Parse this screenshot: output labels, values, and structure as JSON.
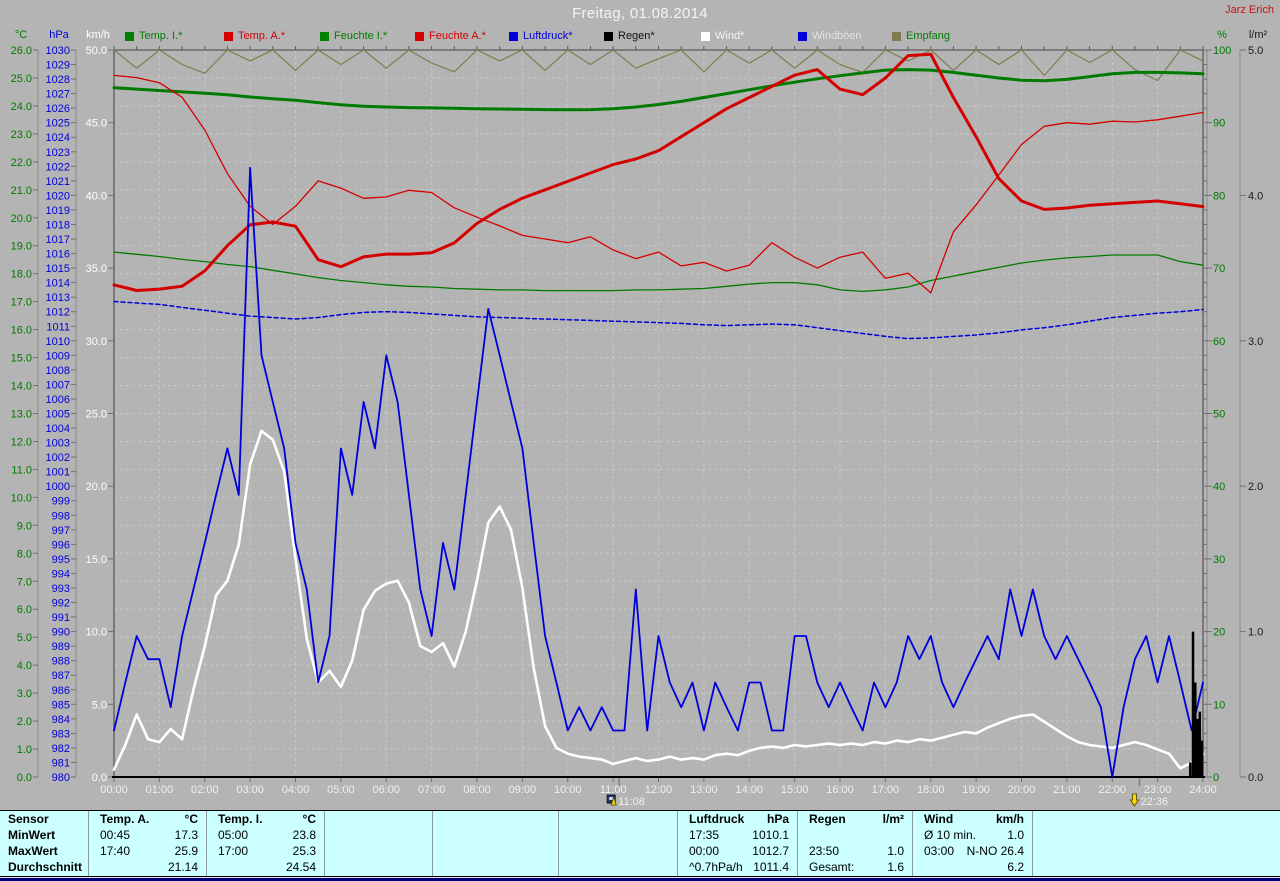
{
  "window": {
    "title": "Freitag, 01.08.2014",
    "watermark": "Jarz Erich"
  },
  "legend": {
    "items": [
      {
        "label": "Temp. I.*",
        "swatch": "#008000",
        "text_color": "#007d00",
        "icon": "green-square-icon"
      },
      {
        "label": "Temp. A.*",
        "swatch": "#d40000",
        "text_color": "#d40000",
        "icon": "red-square-icon"
      },
      {
        "label": "Feuchte I.*",
        "swatch": "#008000",
        "text_color": "#007d00",
        "icon": "green-square-icon"
      },
      {
        "label": "Feuchte A.*",
        "swatch": "#d40000",
        "text_color": "#d40000",
        "icon": "red-square-icon"
      },
      {
        "label": "Luftdruck*",
        "swatch": "#0000d8",
        "text_color": "#0000d8",
        "icon": "blue-square-icon"
      },
      {
        "label": "Regen*",
        "swatch": "#000000",
        "text_color": "#111111",
        "icon": "black-square-icon"
      },
      {
        "label": "Wind*",
        "swatch": "#ffffff",
        "text_color": "#f5f5f5",
        "icon": "white-square-icon"
      },
      {
        "label": "Windböen",
        "swatch": "#0000d8",
        "text_color": "#e2e2e2",
        "icon": "blue-square-icon"
      },
      {
        "label": "Empfang",
        "swatch": "#7f7d4e",
        "text_color": "#007d00",
        "icon": "olive-square-icon"
      }
    ]
  },
  "axes": {
    "temp_c": {
      "unit": "°C",
      "min": 0,
      "max": 26,
      "label_step": 1,
      "decimals": 1,
      "color": "#007a00"
    },
    "pressure_hpa": {
      "unit": "hPa",
      "min": 980,
      "max": 1030,
      "label_step": 1,
      "decimals": 0,
      "color": "#0000d8"
    },
    "wind_kmh": {
      "unit": "km/h",
      "min": 0,
      "max": 50,
      "label_step": 5,
      "decimals": 1,
      "color": "#ffffff"
    },
    "humidity_pct": {
      "unit": "%",
      "min": 0,
      "max": 100,
      "label_step": 10,
      "decimals": 0,
      "color": "#007a00"
    },
    "rain_lm2": {
      "unit": "l/m²",
      "min": 0,
      "max": 5,
      "label_step": 1,
      "decimals": 1,
      "color": "#1a1a1a"
    },
    "time": {
      "tick_labels": [
        "00:00",
        "01:00",
        "02:00",
        "03:00",
        "04:00",
        "05:00",
        "06:00",
        "07:00",
        "08:00",
        "09:00",
        "10:00",
        "11:00",
        "12:00",
        "13:00",
        "14:00",
        "15:00",
        "16:00",
        "17:00",
        "18:00",
        "19:00",
        "20:00",
        "21:00",
        "22:00",
        "23:00",
        "24:00"
      ],
      "color": "#f0f0f0"
    }
  },
  "chart_data": {
    "type": "line",
    "title": "Freitag, 01.08.2014",
    "x_range_hours": [
      0,
      24
    ],
    "grid": "dashed",
    "series": [
      {
        "name": "Empfang",
        "axis": "humidity_pct",
        "color": "#7f7d4e",
        "width": 1.2,
        "style": "solid",
        "x_step_hours": 0.5,
        "values": [
          100,
          97.5,
          100,
          98,
          96.8,
          100,
          98.5,
          100,
          97.2,
          100,
          98,
          100,
          97.5,
          100,
          98.2,
          97,
          100,
          98.5,
          100,
          97.2,
          100,
          98,
          100,
          97.5,
          98.8,
          100,
          97,
          100,
          98.2,
          100,
          97.5,
          100,
          98,
          96.9,
          100,
          98.5,
          100,
          97.2,
          100,
          98,
          100,
          96.5,
          100,
          98.3,
          100,
          97.3,
          95.8,
          100,
          98.5
        ]
      },
      {
        "name": "Feuchte I.",
        "axis": "humidity_pct",
        "color": "#007a00",
        "width": 1.3,
        "style": "solid",
        "x_step_hours": 0.5,
        "values": [
          72.2,
          71.9,
          71.6,
          71.2,
          70.9,
          70.5,
          70.2,
          69.7,
          69.2,
          68.7,
          68.3,
          68.0,
          67.7,
          67.5,
          67.4,
          67.2,
          67.1,
          67.0,
          67.0,
          66.9,
          66.9,
          66.9,
          66.9,
          67.0,
          67.0,
          67.1,
          67.2,
          67.5,
          67.8,
          68.0,
          68.0,
          67.7,
          67.0,
          66.8,
          67.0,
          67.4,
          68.3,
          68.9,
          69.5,
          70.1,
          70.7,
          71.1,
          71.4,
          71.6,
          71.8,
          71.8,
          71.8,
          70.9,
          70.4
        ]
      },
      {
        "name": "Temp. I.",
        "axis": "temp_c",
        "color": "#007a00",
        "width": 3,
        "style": "solid",
        "x_step_hours": 0.5,
        "values": [
          24.65,
          24.6,
          24.55,
          24.5,
          24.45,
          24.4,
          24.32,
          24.26,
          24.2,
          24.12,
          24.04,
          23.99,
          23.96,
          23.94,
          23.93,
          23.92,
          23.9,
          23.89,
          23.88,
          23.87,
          23.86,
          23.87,
          23.9,
          23.96,
          24.05,
          24.16,
          24.3,
          24.44,
          24.58,
          24.72,
          24.85,
          24.97,
          25.08,
          25.18,
          25.28,
          25.3,
          25.28,
          25.2,
          25.1,
          25.0,
          24.92,
          24.9,
          24.95,
          25.05,
          25.15,
          25.2,
          25.2,
          25.18,
          25.15
        ]
      },
      {
        "name": "Luftdruck",
        "axis": "pressure_hpa",
        "color": "#0000dd",
        "width": 1.5,
        "style": "dashed",
        "x_step_hours": 0.5,
        "values": [
          1012.7,
          1012.6,
          1012.5,
          1012.3,
          1012.1,
          1011.9,
          1011.7,
          1011.6,
          1011.5,
          1011.6,
          1011.8,
          1011.95,
          1012.0,
          1011.95,
          1011.85,
          1011.75,
          1011.65,
          1011.6,
          1011.55,
          1011.5,
          1011.45,
          1011.4,
          1011.35,
          1011.3,
          1011.25,
          1011.2,
          1011.1,
          1011.05,
          1011.1,
          1011.15,
          1011.1,
          1010.9,
          1010.7,
          1010.5,
          1010.3,
          1010.15,
          1010.2,
          1010.3,
          1010.4,
          1010.55,
          1010.75,
          1010.9,
          1011.1,
          1011.35,
          1011.6,
          1011.75,
          1011.9,
          1012.0,
          1012.15
        ]
      },
      {
        "name": "Feuchte A.",
        "axis": "humidity_pct",
        "color": "#d40000",
        "width": 1.3,
        "style": "solid",
        "x_step_hours": 0.5,
        "values": [
          96.5,
          96.2,
          95.5,
          93.5,
          89.0,
          83.0,
          78.5,
          76.0,
          78.5,
          82.0,
          81.0,
          79.6,
          79.8,
          80.7,
          80.4,
          78.3,
          77.0,
          75.8,
          74.5,
          74.0,
          73.5,
          74.3,
          72.5,
          71.3,
          72.2,
          70.3,
          70.8,
          69.6,
          70.4,
          73.5,
          71.5,
          70.0,
          71.5,
          72.2,
          68.6,
          69.3,
          66.6,
          75.0,
          78.7,
          82.8,
          87.0,
          89.5,
          90.0,
          89.8,
          90.2,
          90.1,
          90.4,
          90.9,
          91.4
        ]
      },
      {
        "name": "Temp. A.",
        "axis": "temp_c",
        "color": "#d40000",
        "width": 3,
        "style": "solid",
        "x_step_hours": 0.5,
        "values": [
          17.6,
          17.4,
          17.45,
          17.55,
          18.1,
          19.0,
          19.75,
          19.85,
          19.7,
          18.5,
          18.25,
          18.6,
          18.7,
          18.7,
          18.75,
          19.1,
          19.8,
          20.3,
          20.7,
          21.0,
          21.3,
          21.6,
          21.9,
          22.1,
          22.4,
          22.9,
          23.4,
          23.9,
          24.3,
          24.7,
          25.1,
          25.3,
          24.6,
          24.4,
          25.0,
          25.8,
          25.85,
          24.3,
          22.9,
          21.4,
          20.6,
          20.3,
          20.35,
          20.45,
          20.5,
          20.55,
          20.6,
          20.5,
          20.4
        ]
      },
      {
        "name": "Wind",
        "axis": "wind_kmh",
        "color": "#ffffff",
        "width": 2.6,
        "style": "solid",
        "x_step_hours": 0.25,
        "values": [
          0.5,
          2.2,
          4.3,
          2.6,
          2.4,
          3.3,
          2.6,
          6.0,
          9.0,
          12.5,
          13.5,
          16.0,
          21.5,
          23.8,
          23.2,
          21.0,
          15.0,
          9.5,
          6.5,
          7.3,
          6.2,
          8.0,
          11.5,
          12.8,
          13.3,
          13.5,
          12.0,
          9.0,
          8.6,
          9.2,
          7.6,
          10.0,
          13.5,
          17.5,
          18.6,
          17.0,
          13.0,
          7.5,
          3.5,
          2.0,
          1.6,
          1.4,
          1.3,
          1.2,
          0.9,
          1.1,
          1.3,
          1.1,
          1.2,
          1.4,
          1.2,
          1.3,
          1.2,
          1.5,
          1.6,
          1.5,
          1.8,
          2.0,
          2.1,
          2.0,
          2.2,
          2.1,
          2.2,
          2.3,
          2.2,
          2.3,
          2.2,
          2.4,
          2.3,
          2.5,
          2.4,
          2.6,
          2.5,
          2.7,
          2.9,
          3.1,
          3.0,
          3.4,
          3.7,
          4.0,
          4.2,
          4.3,
          3.8,
          3.3,
          2.8,
          2.4,
          2.2,
          2.1,
          2.0,
          2.2,
          2.4,
          2.2,
          1.9,
          1.6,
          0.6,
          1.0,
          1.6
        ]
      },
      {
        "name": "Windböen",
        "axis": "wind_kmh",
        "color": "#0000dd",
        "width": 1.8,
        "style": "solid",
        "x_step_hours": 0.25,
        "values": [
          3.2,
          6.5,
          9.7,
          8.1,
          8.1,
          4.8,
          9.7,
          12.9,
          16.1,
          19.4,
          22.6,
          19.4,
          41.9,
          29.0,
          25.8,
          22.6,
          16.1,
          12.9,
          6.5,
          9.7,
          22.6,
          19.4,
          25.8,
          22.6,
          29.0,
          25.8,
          19.4,
          12.9,
          9.7,
          16.1,
          12.9,
          19.4,
          25.8,
          32.2,
          29.0,
          25.8,
          22.6,
          16.1,
          9.7,
          6.5,
          3.2,
          4.8,
          3.2,
          4.8,
          3.2,
          3.2,
          12.9,
          3.2,
          9.7,
          6.5,
          4.8,
          6.5,
          3.2,
          6.5,
          4.8,
          3.2,
          6.5,
          6.5,
          3.2,
          3.2,
          9.7,
          9.7,
          6.5,
          4.8,
          6.5,
          4.8,
          3.2,
          6.5,
          4.8,
          6.5,
          9.7,
          8.1,
          9.7,
          6.5,
          4.8,
          6.5,
          8.1,
          9.7,
          8.1,
          12.9,
          9.7,
          12.9,
          9.7,
          8.1,
          9.7,
          8.1,
          6.5,
          4.8,
          0.0,
          4.8,
          8.1,
          9.7,
          6.5,
          9.7,
          6.5,
          3.2,
          6.5
        ]
      }
    ],
    "rain": {
      "name": "Regen",
      "axis": "rain_lm2",
      "color": "#000000",
      "points": [
        {
          "t": 23.72,
          "v": 0.1
        },
        {
          "t": 23.78,
          "v": 1.0
        },
        {
          "t": 23.83,
          "v": 0.65
        },
        {
          "t": 23.88,
          "v": 0.4
        },
        {
          "t": 23.93,
          "v": 0.45
        },
        {
          "t": 23.98,
          "v": 0.25
        }
      ]
    },
    "markers": [
      {
        "time": "11:08",
        "icon": "sensor-alarm-icon"
      },
      {
        "time": "22:36",
        "icon": "yellow-down-arrow-icon"
      }
    ]
  },
  "summary_table": {
    "row_labels": [
      "Sensor",
      "MinWert",
      "MaxWert",
      "Durchschnitt"
    ],
    "columns": [
      {
        "header": "Temp. A.",
        "unit": "°C",
        "rows": [
          [
            "00:45",
            "17.3"
          ],
          [
            "17:40",
            "25.9"
          ],
          [
            "",
            "21.14"
          ]
        ]
      },
      {
        "header": "Temp. I.",
        "unit": "°C",
        "rows": [
          [
            "05:00",
            "23.8"
          ],
          [
            "17:00",
            "25.3"
          ],
          [
            "",
            "24.54"
          ]
        ]
      },
      {
        "header": "",
        "unit": "",
        "rows": [
          [
            "",
            ""
          ],
          [
            "",
            ""
          ],
          [
            "",
            ""
          ]
        ]
      },
      {
        "header": "",
        "unit": "",
        "rows": [
          [
            "",
            ""
          ],
          [
            "",
            ""
          ],
          [
            "",
            ""
          ]
        ]
      },
      {
        "header": "",
        "unit": "",
        "rows": [
          [
            "",
            ""
          ],
          [
            "",
            ""
          ],
          [
            "",
            ""
          ]
        ]
      },
      {
        "header": "Luftdruck",
        "unit": "hPa",
        "rows": [
          [
            "17:35",
            "1010.1"
          ],
          [
            "00:00",
            "1012.7"
          ],
          [
            "^0.7hPa/h",
            "1011.4"
          ]
        ]
      },
      {
        "header": "Regen",
        "unit": "l/m²",
        "rows": [
          [
            "",
            ""
          ],
          [
            "23:50",
            "1.0"
          ],
          [
            "Gesamt:",
            "1.6"
          ]
        ]
      },
      {
        "header": "Wind",
        "unit": "km/h",
        "rows": [
          [
            "Ø 10 min.",
            "1.0"
          ],
          [
            "03:00",
            "N-NO 26.4"
          ],
          [
            "",
            "6.2"
          ]
        ]
      },
      {
        "header": "",
        "unit": "",
        "rows": [
          [
            "",
            ""
          ],
          [
            "",
            ""
          ],
          [
            "",
            ""
          ]
        ]
      }
    ]
  },
  "colors": {
    "background": "#b4b4b4",
    "plot_border": "#5a5a5a",
    "grid": "#c8c8c8",
    "ruler": "#8a8a8a",
    "x_axis": "#000000",
    "table_bg": "#ccffff",
    "table_divider": "#8c9c9c",
    "title": "#f4f4f4",
    "watermark": "#cc1111",
    "marker_text": "#f0f0f0",
    "marker_yellow": "#ffd800"
  }
}
